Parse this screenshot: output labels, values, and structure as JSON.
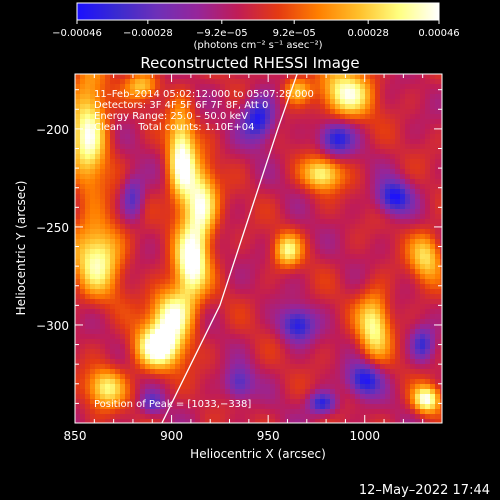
{
  "chart_data": {
    "type": "heatmap",
    "title": "Reconstructed RHESSI Image",
    "xlabel": "Heliocentric X (arcsec)",
    "ylabel": "Heliocentric Y (arcsec)",
    "xlim": [
      850,
      1040
    ],
    "ylim": [
      -350,
      -172
    ],
    "x_ticks": [
      850,
      900,
      950,
      1000
    ],
    "x_tick_labels": [
      "850",
      "900",
      "950",
      "1000"
    ],
    "y_ticks": [
      -200,
      -250,
      -300
    ],
    "y_tick_labels": [
      "−200",
      "−250",
      "−300"
    ],
    "colorbar": {
      "tick_values": [
        -0.00046,
        -0.00028,
        -9.2e-05,
        9.2e-05,
        0.00028,
        0.00046
      ],
      "tick_labels": [
        "−0.00046",
        "−0.00028",
        "−9.2e−05",
        "9.2e−05",
        "0.00028",
        "0.00046"
      ],
      "unit_label": "(photons cm⁻² s⁻¹ asec⁻²)",
      "colors": [
        "#1a10ff",
        "#3a2bd0",
        "#6e30b8",
        "#96259a",
        "#c01c56",
        "#e43a12",
        "#ff7f00",
        "#ffbf2a",
        "#ffff80",
        "#ffffff"
      ]
    },
    "annotations": [
      "11–Feb–2014 05:02:12.000 to 05:07:28.000",
      "Detectors: 3F 4F 5F 6F 7F 8F, Att 0",
      "Energy Range: 25.0 – 50.0 keV",
      "Clean     Total counts: 1.10E+04"
    ],
    "peak_label": "Position of Peak = [1033,−338]",
    "peak_position": [
      1033,
      -338
    ],
    "limb_curve": [
      [
        895,
        -350
      ],
      [
        910,
        -320
      ],
      [
        925,
        -290
      ],
      [
        935,
        -260
      ],
      [
        945,
        -230
      ],
      [
        955,
        -200
      ],
      [
        965,
        -172
      ]
    ],
    "bright_features": [
      {
        "x": 905,
        "y": -215,
        "sx": 5,
        "sy": 18,
        "v": 1.0
      },
      {
        "x": 915,
        "y": -240,
        "sx": 6,
        "sy": 15,
        "v": 1.0
      },
      {
        "x": 910,
        "y": -270,
        "sx": 6,
        "sy": 12,
        "v": 1.0
      },
      {
        "x": 900,
        "y": -295,
        "sx": 8,
        "sy": 10,
        "v": 1.0
      },
      {
        "x": 893,
        "y": -312,
        "sx": 9,
        "sy": 8,
        "v": 1.0
      },
      {
        "x": 857,
        "y": -200,
        "sx": 7,
        "sy": 22,
        "v": 0.95
      },
      {
        "x": 862,
        "y": -265,
        "sx": 9,
        "sy": 14,
        "v": 0.9
      },
      {
        "x": 866,
        "y": -332,
        "sx": 7,
        "sy": 7,
        "v": 0.8
      },
      {
        "x": 885,
        "y": -178,
        "sx": 6,
        "sy": 5,
        "v": 0.6
      },
      {
        "x": 990,
        "y": -182,
        "sx": 10,
        "sy": 9,
        "v": 0.9
      },
      {
        "x": 965,
        "y": -180,
        "sx": 5,
        "sy": 5,
        "v": 0.6
      },
      {
        "x": 978,
        "y": -223,
        "sx": 7,
        "sy": 6,
        "v": 0.85
      },
      {
        "x": 960,
        "y": -262,
        "sx": 5,
        "sy": 6,
        "v": 0.75
      },
      {
        "x": 1005,
        "y": -300,
        "sx": 6,
        "sy": 12,
        "v": 0.85
      },
      {
        "x": 1032,
        "y": -265,
        "sx": 6,
        "sy": 9,
        "v": 0.7
      },
      {
        "x": 1032,
        "y": -338,
        "sx": 5,
        "sy": 5,
        "v": 1.0
      }
    ],
    "dark_features": [
      {
        "x": 945,
        "y": -195,
        "sx": 6,
        "sy": 8,
        "v": -0.9
      },
      {
        "x": 985,
        "y": -205,
        "sx": 6,
        "sy": 6,
        "v": -0.8
      },
      {
        "x": 1015,
        "y": -235,
        "sx": 6,
        "sy": 6,
        "v": -0.85
      },
      {
        "x": 965,
        "y": -300,
        "sx": 6,
        "sy": 6,
        "v": -0.8
      },
      {
        "x": 1000,
        "y": -328,
        "sx": 6,
        "sy": 6,
        "v": -0.85
      },
      {
        "x": 978,
        "y": -340,
        "sx": 5,
        "sy": 4,
        "v": -0.8
      },
      {
        "x": 935,
        "y": -330,
        "sx": 5,
        "sy": 6,
        "v": -0.6
      },
      {
        "x": 880,
        "y": -235,
        "sx": 4,
        "sy": 8,
        "v": -0.6
      },
      {
        "x": 890,
        "y": -340,
        "sx": 4,
        "sy": 4,
        "v": -0.5
      },
      {
        "x": 1030,
        "y": -310,
        "sx": 4,
        "sy": 6,
        "v": -0.6
      }
    ]
  },
  "footer": {
    "date": "12–May–2022 17:44"
  }
}
